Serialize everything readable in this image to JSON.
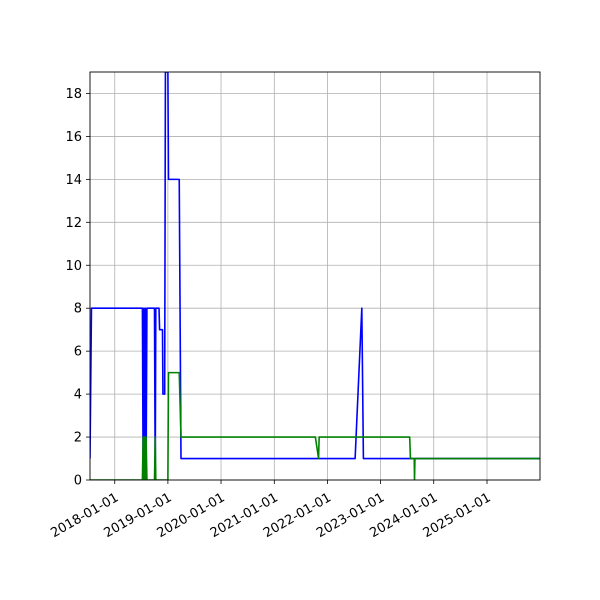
{
  "chart_data": {
    "type": "line",
    "title": "",
    "xlabel": "",
    "ylabel": "",
    "x_axis_type": "date",
    "xlim": [
      "2017-07-15",
      "2025-12-31"
    ],
    "ylim": [
      0,
      19
    ],
    "grid": true,
    "x_tick_labels": [
      "2018-01-01",
      "2019-01-01",
      "2020-01-01",
      "2021-01-01",
      "2022-01-01",
      "2023-01-01",
      "2024-01-01",
      "2025-01-01"
    ],
    "y_ticks": [
      0,
      2,
      4,
      6,
      8,
      10,
      12,
      14,
      16,
      18
    ],
    "series": [
      {
        "color": "#0000ff",
        "points": [
          [
            "2017-07-15",
            1
          ],
          [
            "2017-07-25",
            8
          ],
          [
            "2018-07-10",
            8
          ],
          [
            "2018-07-15",
            0
          ],
          [
            "2018-07-20",
            8
          ],
          [
            "2018-07-25",
            0
          ],
          [
            "2018-07-30",
            8
          ],
          [
            "2018-08-04",
            0
          ],
          [
            "2018-08-10",
            8
          ],
          [
            "2018-08-20",
            8
          ],
          [
            "2018-10-01",
            8
          ],
          [
            "2018-10-06",
            0
          ],
          [
            "2018-10-10",
            8
          ],
          [
            "2018-11-01",
            8
          ],
          [
            "2018-11-05",
            7
          ],
          [
            "2018-11-25",
            7
          ],
          [
            "2018-11-28",
            4
          ],
          [
            "2018-12-10",
            4
          ],
          [
            "2018-12-15",
            19
          ],
          [
            "2019-01-01",
            19
          ],
          [
            "2019-01-05",
            14
          ],
          [
            "2019-03-20",
            14
          ],
          [
            "2019-04-01",
            1
          ],
          [
            "2022-07-10",
            1
          ],
          [
            "2022-08-25",
            8
          ],
          [
            "2022-09-05",
            1
          ],
          [
            "2025-12-31",
            1
          ]
        ]
      },
      {
        "color": "#008000",
        "points": [
          [
            "2017-07-15",
            0
          ],
          [
            "2018-07-10",
            0
          ],
          [
            "2018-07-15",
            2
          ],
          [
            "2018-07-20",
            0
          ],
          [
            "2018-07-25",
            2
          ],
          [
            "2018-07-30",
            0
          ],
          [
            "2018-08-04",
            2
          ],
          [
            "2018-08-10",
            0
          ],
          [
            "2018-10-01",
            0
          ],
          [
            "2018-10-06",
            2
          ],
          [
            "2018-10-10",
            0
          ],
          [
            "2019-01-01",
            0
          ],
          [
            "2019-01-05",
            5
          ],
          [
            "2019-03-20",
            5
          ],
          [
            "2019-04-01",
            2
          ],
          [
            "2021-10-10",
            2
          ],
          [
            "2021-11-01",
            1
          ],
          [
            "2021-11-05",
            2
          ],
          [
            "2023-07-20",
            2
          ],
          [
            "2023-07-25",
            1
          ],
          [
            "2023-08-20",
            1
          ],
          [
            "2023-08-22",
            0
          ],
          [
            "2023-08-25",
            1
          ],
          [
            "2025-12-31",
            1
          ]
        ]
      }
    ]
  }
}
